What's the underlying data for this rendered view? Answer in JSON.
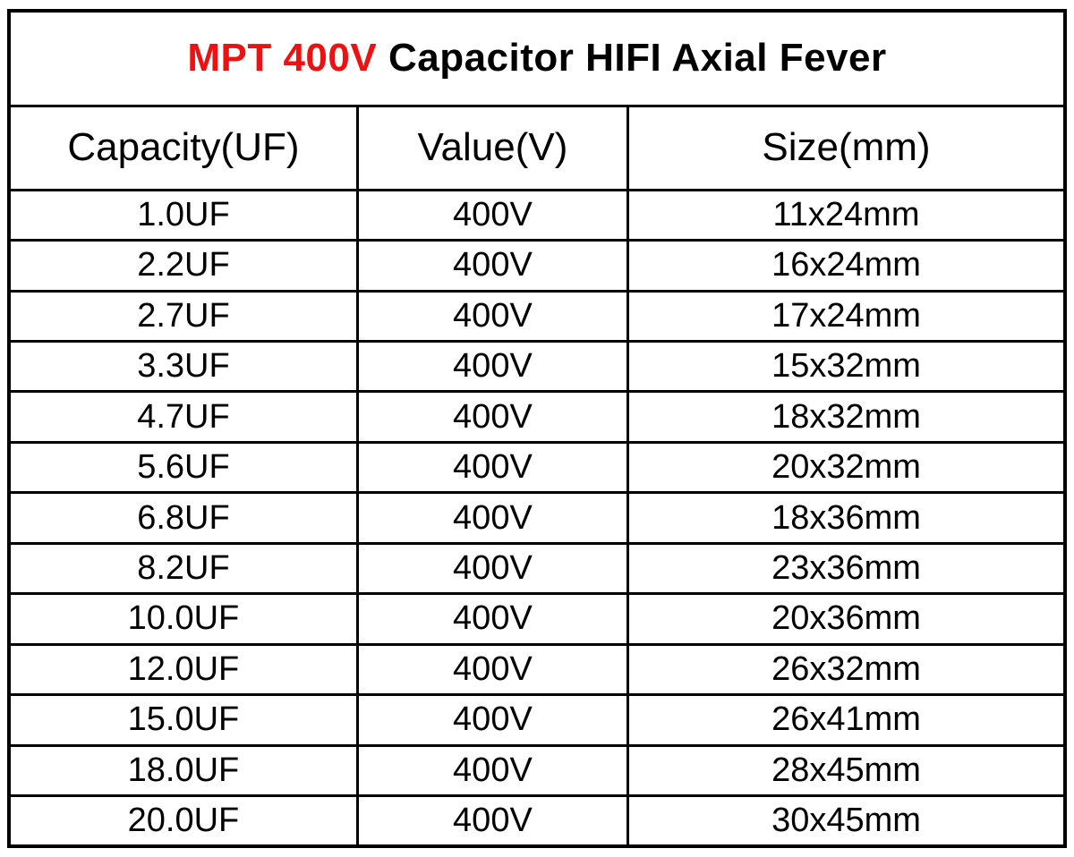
{
  "title": {
    "highlight": "MPT 400V",
    "rest": " Capacitor HIFI Axial Fever"
  },
  "colors": {
    "highlight": "#ee1111",
    "text": "#000000",
    "border": "#000000",
    "background": "#ffffff"
  },
  "table": {
    "headers": [
      "Capacity(UF)",
      "Value(V)",
      "Size(mm)"
    ],
    "rows": [
      [
        "1.0UF",
        "400V",
        "11x24mm"
      ],
      [
        "2.2UF",
        "400V",
        "16x24mm"
      ],
      [
        "2.7UF",
        "400V",
        "17x24mm"
      ],
      [
        "3.3UF",
        "400V",
        "15x32mm"
      ],
      [
        "4.7UF",
        "400V",
        "18x32mm"
      ],
      [
        "5.6UF",
        "400V",
        "20x32mm"
      ],
      [
        "6.8UF",
        "400V",
        "18x36mm"
      ],
      [
        "8.2UF",
        "400V",
        "23x36mm"
      ],
      [
        "10.0UF",
        "400V",
        "20x36mm"
      ],
      [
        "12.0UF",
        "400V",
        "26x32mm"
      ],
      [
        "15.0UF",
        "400V",
        "26x41mm"
      ],
      [
        "18.0UF",
        "400V",
        "28x45mm"
      ],
      [
        "20.0UF",
        "400V",
        "30x45mm"
      ]
    ]
  }
}
